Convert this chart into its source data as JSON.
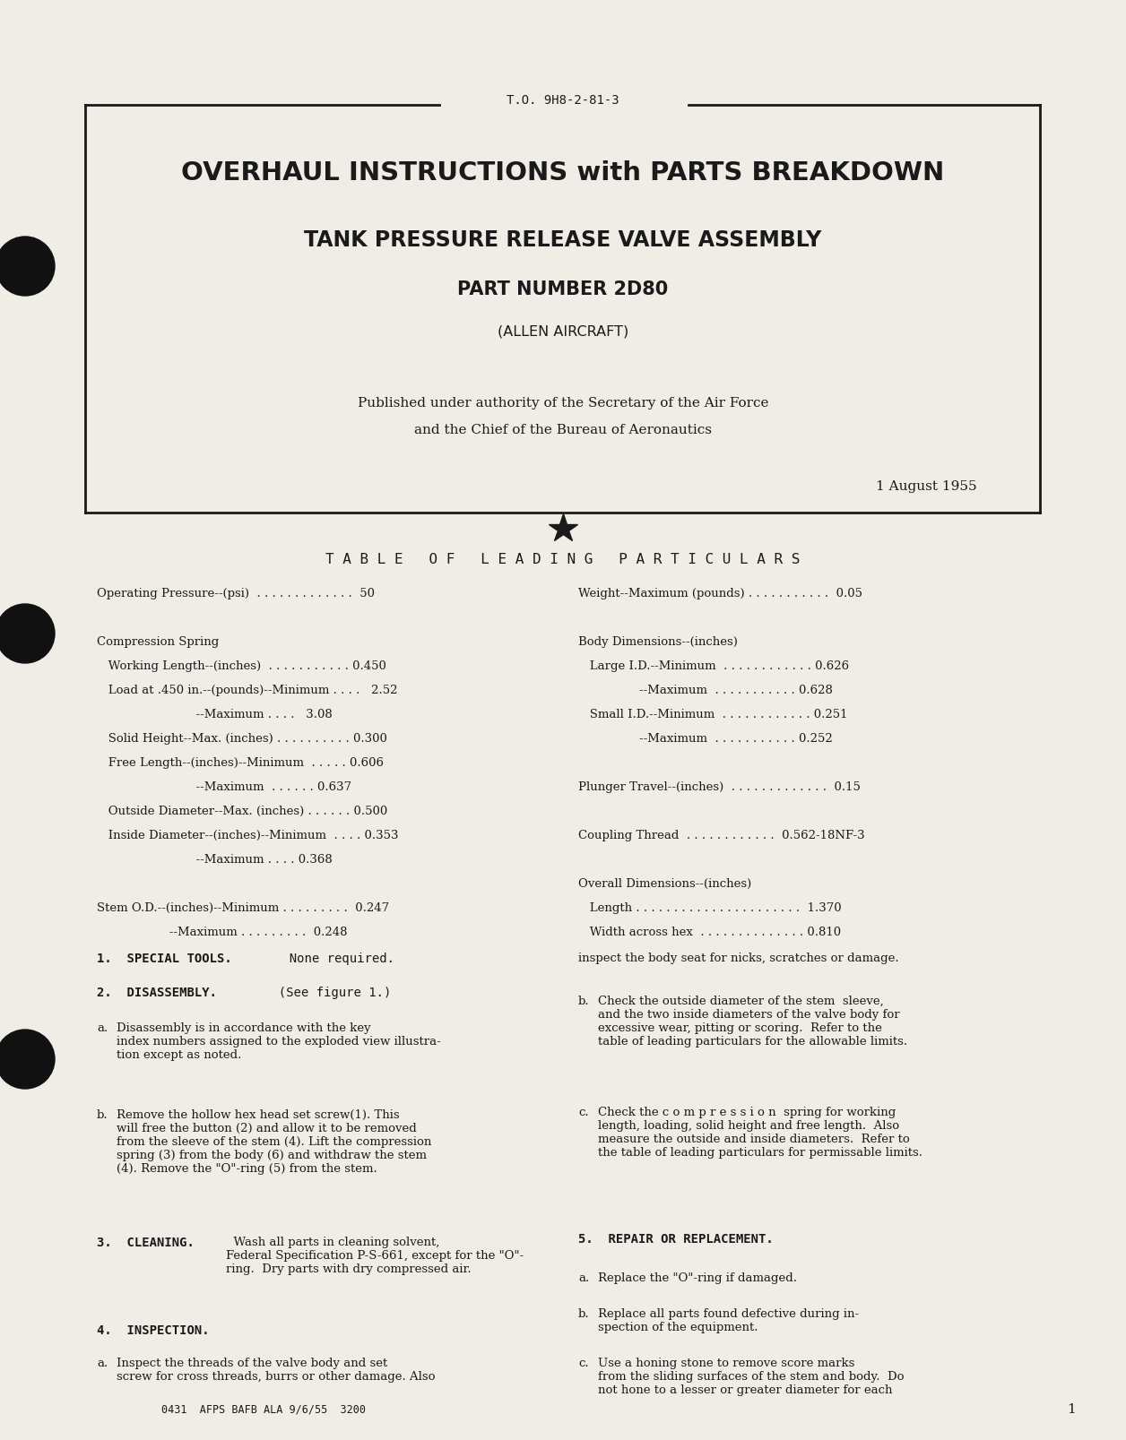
{
  "bg_color": "#dedad4",
  "page_bg": "#f0ede6",
  "text_color": "#1a1a1a",
  "border_color": "#1a1a1a",
  "to_number": "T.O. 9H8-2-81-3",
  "title1": "OVERHAUL INSTRUCTIONS with PARTS BREAKDOWN",
  "title2": "TANK PRESSURE RELEASE VALVE ASSEMBLY",
  "title3": "PART NUMBER 2D80",
  "title4": "(ALLEN AIRCRAFT)",
  "pub_line1": "Published under authority of the Secretary of the Air Force",
  "pub_line2": "and the Chief of the Bureau of Aeronautics",
  "date": "1 August 1955",
  "section_title": "T A B L E   O F   L E A D I N G   P A R T I C U L A R S",
  "footer": "0431  AFPS BAFB ALA 9/6/55  3200",
  "page_number": "1"
}
